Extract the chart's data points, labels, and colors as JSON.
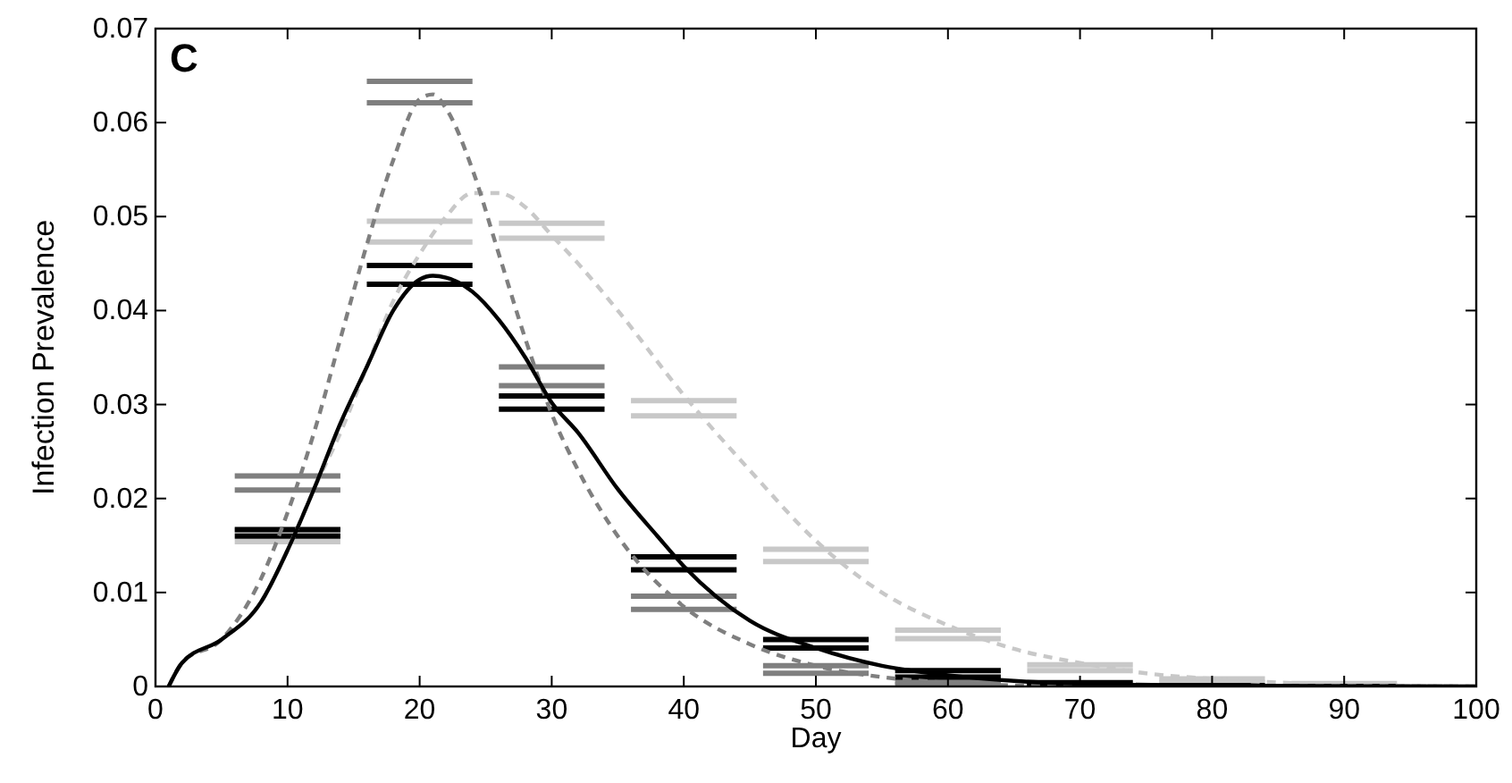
{
  "chart_data": {
    "type": "line",
    "title": "C",
    "xlabel": "Day",
    "ylabel": "Infection Prevalence",
    "xlim": [
      0,
      100
    ],
    "ylim": [
      0,
      0.07
    ],
    "xticks": [
      0,
      10,
      20,
      30,
      40,
      50,
      60,
      70,
      80,
      90,
      100
    ],
    "yticks": [
      0,
      0.01,
      0.02,
      0.03,
      0.04,
      0.05,
      0.06,
      0.07
    ],
    "series": [
      {
        "type": "line",
        "color": "#c8c8c8",
        "line_style": "solid",
        "x": [
          6,
          14,
          15,
          16,
          24,
          25,
          26,
          34,
          35,
          36,
          44,
          45,
          46,
          54,
          55,
          56,
          64,
          65,
          66,
          74,
          75,
          76,
          84,
          85,
          86,
          94
        ],
        "values": [
          0.0166,
          0.0166,
          null,
          0.0495,
          0.0495,
          null,
          0.0493,
          0.0493,
          null,
          0.0304,
          0.0304,
          null,
          0.0146,
          0.0146,
          null,
          0.006,
          0.006,
          null,
          0.0023,
          0.0023,
          null,
          0.0008,
          0.0008,
          null,
          0.0003,
          0.0003
        ]
      },
      {
        "type": "line",
        "color": "#c8c8c8",
        "line_style": "solid",
        "x": [
          6,
          14,
          15,
          16,
          24,
          25,
          26,
          34,
          35,
          36,
          44,
          45,
          46,
          54,
          55,
          56,
          64,
          65,
          66,
          74,
          75,
          76,
          84,
          85,
          86,
          94
        ],
        "values": [
          0.0154,
          0.0154,
          null,
          0.0473,
          0.0473,
          null,
          0.0477,
          0.0477,
          null,
          0.0288,
          0.0288,
          null,
          0.0133,
          0.0133,
          null,
          0.0051,
          0.0051,
          null,
          0.0017,
          0.0017,
          null,
          0.0004,
          0.0004,
          null,
          0.0001,
          0.0001
        ]
      },
      {
        "type": "line",
        "color": "#7f7f7f",
        "line_style": "solid",
        "x": [
          6,
          14,
          15,
          16,
          24,
          25,
          26,
          34,
          35,
          36,
          44,
          45,
          46,
          54,
          55,
          56,
          64,
          65,
          66,
          74,
          75,
          76,
          84,
          85,
          86,
          94
        ],
        "values": [
          0.0224,
          0.0224,
          null,
          0.0644,
          0.0644,
          null,
          0.034,
          0.034,
          null,
          0.0096,
          0.0096,
          null,
          0.0022,
          0.0022,
          null,
          0.0005,
          0.0005,
          null,
          0.0001,
          0.0001,
          null,
          0,
          0,
          null,
          0,
          0
        ]
      },
      {
        "type": "line",
        "color": "#7f7f7f",
        "line_style": "solid",
        "x": [
          6,
          14,
          15,
          16,
          24,
          25,
          26,
          34,
          35,
          36,
          44,
          45,
          46,
          54,
          55,
          56,
          64,
          65,
          66,
          74,
          75,
          76,
          84,
          85,
          86,
          94
        ],
        "values": [
          0.0209,
          0.0209,
          null,
          0.0621,
          0.0621,
          null,
          0.032,
          0.032,
          null,
          0.0082,
          0.0082,
          null,
          0.0014,
          0.0014,
          null,
          0.0002,
          0.0002,
          null,
          0,
          0,
          null,
          0,
          0,
          null,
          0,
          0
        ]
      },
      {
        "type": "line",
        "color": "#000000",
        "line_style": "solid",
        "x": [
          6,
          14,
          15,
          16,
          24,
          25,
          26,
          34,
          35,
          36,
          44,
          45,
          46,
          54,
          55,
          56,
          64,
          65,
          66,
          74,
          75,
          76,
          84,
          85,
          86,
          94
        ],
        "values": [
          0.0167,
          0.0167,
          null,
          0.0448,
          0.0448,
          null,
          0.0309,
          0.0309,
          null,
          0.0138,
          0.0138,
          null,
          0.005,
          0.005,
          null,
          0.0017,
          0.0017,
          null,
          0.0004,
          0.0004,
          null,
          0.0001,
          0.0001,
          null,
          0,
          0
        ]
      },
      {
        "type": "line",
        "color": "#000000",
        "line_style": "solid",
        "x": [
          6,
          14,
          15,
          16,
          24,
          25,
          26,
          34,
          35,
          36,
          44,
          45,
          46,
          54,
          55,
          56,
          64,
          65,
          66,
          74,
          75,
          76,
          84,
          85,
          86,
          94
        ],
        "values": [
          0.016,
          0.016,
          null,
          0.0428,
          0.0428,
          null,
          0.0295,
          0.0295,
          null,
          0.0124,
          0.0124,
          null,
          0.0041,
          0.0041,
          null,
          0.001,
          0.001,
          null,
          0.0001,
          0.0001,
          null,
          0,
          0,
          null,
          0,
          0
        ]
      },
      {
        "type": "line",
        "color": "#c8c8c8",
        "line_style": "dashed",
        "x": [
          1,
          2,
          5,
          8,
          10,
          12,
          14,
          16,
          18,
          20,
          22,
          24,
          26,
          28,
          30,
          32,
          35,
          40,
          45,
          50,
          55,
          60,
          65,
          70,
          75,
          80,
          90,
          100
        ],
        "values": [
          0,
          0.0025,
          0.005,
          0.009,
          0.0145,
          0.021,
          0.027,
          0.034,
          0.041,
          0.046,
          0.05,
          0.0525,
          0.0525,
          0.051,
          0.048,
          0.045,
          0.04,
          0.031,
          0.023,
          0.0155,
          0.01,
          0.0065,
          0.004,
          0.0025,
          0.0014,
          0.0008,
          0.0002,
          0
        ]
      },
      {
        "type": "line",
        "color": "#7f7f7f",
        "line_style": "dashed",
        "x": [
          1,
          2,
          5,
          8,
          10,
          12,
          14,
          16,
          18,
          20,
          21,
          22,
          24,
          26,
          28,
          30,
          32,
          35,
          40,
          45,
          50,
          55,
          60,
          65,
          70,
          80,
          100
        ],
        "values": [
          0,
          0.0025,
          0.005,
          0.0115,
          0.0185,
          0.027,
          0.037,
          0.047,
          0.056,
          0.0625,
          0.063,
          0.0615,
          0.055,
          0.046,
          0.037,
          0.029,
          0.023,
          0.016,
          0.0085,
          0.0045,
          0.0022,
          0.001,
          0.0004,
          0.0001,
          0,
          0,
          0
        ]
      },
      {
        "type": "line",
        "color": "#000000",
        "line_style": "solid",
        "x": [
          1,
          2,
          5,
          8,
          10,
          12,
          14,
          16,
          18,
          20,
          21,
          22,
          24,
          26,
          28,
          30,
          32,
          35,
          38,
          40,
          45,
          50,
          55,
          60,
          65,
          70,
          80,
          100
        ],
        "values": [
          0,
          0.0025,
          0.005,
          0.009,
          0.0145,
          0.021,
          0.028,
          0.034,
          0.04,
          0.0433,
          0.0437,
          0.0435,
          0.042,
          0.039,
          0.035,
          0.0302,
          0.027,
          0.021,
          0.016,
          0.0128,
          0.007,
          0.0041,
          0.0022,
          0.0012,
          0.0006,
          0.0003,
          0.0001,
          0
        ]
      }
    ]
  }
}
